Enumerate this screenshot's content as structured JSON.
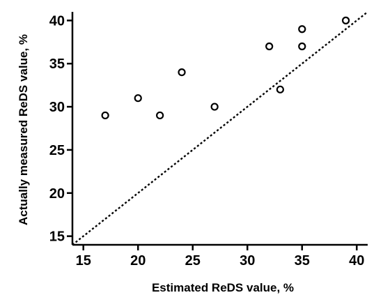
{
  "chart_data": {
    "type": "scatter",
    "title": "",
    "xlabel": "Estimated ReDS value, %",
    "ylabel": "Actually measured ReDS value, %",
    "xlim": [
      14,
      41
    ],
    "ylim": [
      14,
      41
    ],
    "xticks": [
      15,
      20,
      25,
      30,
      35,
      40
    ],
    "yticks": [
      15,
      20,
      25,
      30,
      35,
      40
    ],
    "grid": false,
    "legend": "none",
    "series": [
      {
        "marker": "open-circle",
        "color": "#000000",
        "points": [
          {
            "x": 17,
            "y": 29
          },
          {
            "x": 20,
            "y": 31
          },
          {
            "x": 22,
            "y": 29
          },
          {
            "x": 24,
            "y": 34
          },
          {
            "x": 27,
            "y": 30
          },
          {
            "x": 32,
            "y": 37
          },
          {
            "x": 33,
            "y": 32
          },
          {
            "x": 35,
            "y": 39
          },
          {
            "x": 35,
            "y": 37
          },
          {
            "x": 39,
            "y": 40
          }
        ]
      }
    ],
    "reference_line": {
      "style": "dotted",
      "color": "#000000",
      "from": {
        "x": 14,
        "y": 14
      },
      "to": {
        "x": 41,
        "y": 41
      }
    }
  }
}
